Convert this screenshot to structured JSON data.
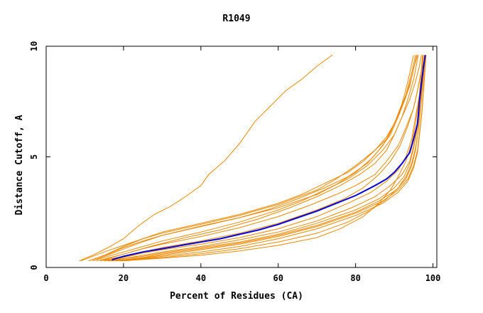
{
  "chart_data": {
    "type": "line",
    "title": "R1049",
    "xlabel": "Percent of Residues (CA)",
    "ylabel": "Distance Cutoff, A",
    "xlim": [
      0,
      101
    ],
    "ylim": [
      0,
      10
    ],
    "x_ticks": [
      0,
      20,
      40,
      60,
      80,
      100
    ],
    "y_ticks": [
      0,
      5,
      10
    ],
    "x_tick_labels": [
      "0",
      "20",
      "40",
      "60",
      "80",
      "100"
    ],
    "y_tick_labels": [
      "0",
      "5",
      "10"
    ],
    "grid": false,
    "legend": "none",
    "colors": {
      "models": "#ee8800",
      "highlight": "#0000dd"
    },
    "highlight": {
      "x": [
        17,
        20,
        25,
        30,
        35,
        40,
        45,
        50,
        55,
        60,
        65,
        70,
        75,
        80,
        85,
        88,
        90,
        92,
        94,
        95,
        96,
        96.5,
        97,
        97.5,
        98
      ],
      "y": [
        0.35,
        0.5,
        0.7,
        0.85,
        1.0,
        1.15,
        1.3,
        1.5,
        1.7,
        1.95,
        2.25,
        2.55,
        2.9,
        3.25,
        3.7,
        4.0,
        4.3,
        4.7,
        5.2,
        5.8,
        6.5,
        7.5,
        8.3,
        9.0,
        9.6
      ]
    },
    "series": [
      {
        "x": [
          8.5,
          12,
          16,
          20,
          24,
          28,
          32,
          36,
          40,
          42,
          46,
          50,
          54,
          58,
          62,
          66,
          70,
          74
        ],
        "y": [
          0.3,
          0.55,
          0.9,
          1.3,
          1.9,
          2.4,
          2.75,
          3.2,
          3.7,
          4.2,
          4.8,
          5.6,
          6.6,
          7.3,
          8.0,
          8.5,
          9.1,
          9.6
        ]
      },
      {
        "x": [
          9,
          15,
          20,
          25,
          30,
          40,
          50,
          60,
          70,
          75,
          80,
          85,
          88,
          90,
          92,
          94,
          95,
          96
        ],
        "y": [
          0.3,
          0.7,
          1.0,
          1.3,
          1.55,
          1.95,
          2.35,
          2.85,
          3.5,
          4.0,
          4.6,
          5.3,
          5.9,
          6.5,
          7.3,
          8.2,
          9.0,
          9.6
        ]
      },
      {
        "x": [
          11,
          16,
          20,
          25,
          30,
          40,
          50,
          60,
          70,
          75,
          80,
          84,
          87,
          89,
          91,
          93,
          94.5,
          95.5
        ],
        "y": [
          0.3,
          0.6,
          0.9,
          1.2,
          1.45,
          1.85,
          2.25,
          2.7,
          3.3,
          3.75,
          4.3,
          4.9,
          5.5,
          6.1,
          6.9,
          7.8,
          8.8,
          9.6
        ]
      },
      {
        "x": [
          12,
          18,
          25,
          30,
          40,
          50,
          60,
          66,
          72,
          78,
          83,
          87,
          90,
          92,
          94,
          95.5,
          96.5,
          97
        ],
        "y": [
          0.3,
          0.6,
          0.95,
          1.2,
          1.6,
          2.05,
          2.6,
          3.0,
          3.5,
          4.0,
          4.6,
          5.3,
          6.0,
          6.8,
          7.6,
          8.4,
          9.1,
          9.6
        ]
      },
      {
        "x": [
          13,
          20,
          25,
          30,
          40,
          50,
          60,
          68,
          75,
          80,
          85,
          88,
          91,
          93,
          95,
          96,
          97,
          97.5
        ],
        "y": [
          0.3,
          0.6,
          0.85,
          1.05,
          1.4,
          1.8,
          2.3,
          2.8,
          3.3,
          3.7,
          4.2,
          4.8,
          5.5,
          6.3,
          7.2,
          8.0,
          8.9,
          9.6
        ]
      },
      {
        "x": [
          14,
          20,
          25,
          30,
          40,
          50,
          60,
          70,
          77,
          82,
          86,
          89,
          91.5,
          93.5,
          95,
          96,
          97,
          97.5
        ],
        "y": [
          0.3,
          0.5,
          0.7,
          0.9,
          1.2,
          1.55,
          2.0,
          2.6,
          3.1,
          3.6,
          4.2,
          4.8,
          5.5,
          6.4,
          7.2,
          8.0,
          8.9,
          9.6
        ]
      },
      {
        "x": [
          15,
          20,
          25,
          30,
          40,
          50,
          60,
          70,
          78,
          84,
          88,
          91,
          93,
          94.5,
          95.5,
          96.5,
          97,
          97.5
        ],
        "y": [
          0.3,
          0.45,
          0.65,
          0.8,
          1.05,
          1.35,
          1.75,
          2.3,
          2.9,
          3.4,
          3.9,
          4.4,
          5.0,
          5.8,
          6.8,
          7.8,
          8.8,
          9.6
        ]
      },
      {
        "x": [
          15,
          20,
          25,
          30,
          40,
          50,
          60,
          70,
          79,
          85,
          89,
          92,
          94,
          95,
          96,
          96.8,
          97.3,
          97.8
        ],
        "y": [
          0.3,
          0.4,
          0.55,
          0.7,
          0.95,
          1.25,
          1.6,
          2.1,
          2.7,
          3.2,
          3.7,
          4.2,
          4.8,
          5.5,
          6.4,
          7.4,
          8.5,
          9.6
        ]
      },
      {
        "x": [
          16,
          20,
          25,
          30,
          40,
          50,
          60,
          70,
          80,
          86,
          90,
          92.5,
          94,
          95,
          96,
          96.8,
          97.4,
          98
        ],
        "y": [
          0.3,
          0.4,
          0.5,
          0.65,
          0.9,
          1.15,
          1.5,
          2.0,
          2.6,
          3.1,
          3.6,
          4.1,
          4.7,
          5.4,
          6.3,
          7.3,
          8.4,
          9.6
        ]
      },
      {
        "x": [
          16,
          20,
          25,
          30,
          40,
          50,
          60,
          70,
          80,
          86,
          90.5,
          93,
          94.5,
          95.5,
          96.2,
          96.8,
          97.4,
          98
        ],
        "y": [
          0.3,
          0.35,
          0.45,
          0.6,
          0.85,
          1.1,
          1.45,
          1.9,
          2.5,
          3.0,
          3.5,
          4.0,
          4.6,
          5.3,
          6.2,
          7.2,
          8.3,
          9.6
        ]
      },
      {
        "x": [
          17,
          20,
          25,
          30,
          40,
          50,
          60,
          70,
          80,
          87,
          91,
          93.5,
          95,
          96,
          96.6,
          97.2,
          97.7,
          98.2
        ],
        "y": [
          0.3,
          0.35,
          0.42,
          0.55,
          0.8,
          1.05,
          1.4,
          1.85,
          2.45,
          3.0,
          3.5,
          4.0,
          4.6,
          5.3,
          6.2,
          7.2,
          8.4,
          9.6
        ]
      },
      {
        "x": [
          18,
          25,
          30,
          40,
          50,
          60,
          70,
          80,
          87,
          91,
          93.5,
          95,
          96,
          96.6,
          97.2,
          97.7,
          98.2
        ],
        "y": [
          0.3,
          0.4,
          0.5,
          0.7,
          0.95,
          1.3,
          1.75,
          2.35,
          2.9,
          3.4,
          3.9,
          4.5,
          5.2,
          6.1,
          7.1,
          8.3,
          9.6
        ]
      },
      {
        "x": [
          19,
          25,
          30,
          40,
          50,
          60,
          70,
          78,
          84,
          88,
          91,
          93,
          94.5,
          95.5,
          96.3,
          96.9,
          97.5
        ],
        "y": [
          0.3,
          0.38,
          0.45,
          0.62,
          0.85,
          1.15,
          1.55,
          2.05,
          2.6,
          3.1,
          3.6,
          4.1,
          4.7,
          5.4,
          6.3,
          7.5,
          9.6
        ]
      },
      {
        "x": [
          20,
          25,
          30,
          40,
          50,
          60,
          70,
          76,
          82,
          86,
          89,
          91,
          93,
          94.5,
          95.5,
          96.5,
          97.3
        ],
        "y": [
          0.3,
          0.36,
          0.42,
          0.55,
          0.75,
          1.0,
          1.35,
          1.75,
          2.3,
          2.9,
          3.5,
          4.1,
          4.8,
          5.6,
          6.5,
          7.8,
          9.6
        ]
      },
      {
        "x": [
          11,
          15,
          20,
          25,
          30,
          35,
          40,
          50,
          60,
          66,
          72,
          78,
          82,
          85,
          88,
          90,
          92,
          93.5,
          95
        ],
        "y": [
          0.3,
          0.55,
          0.95,
          1.3,
          1.6,
          1.8,
          2.0,
          2.4,
          2.9,
          3.3,
          3.8,
          4.3,
          4.8,
          5.3,
          5.8,
          6.5,
          7.4,
          8.4,
          9.6
        ]
      },
      {
        "x": [
          12,
          18,
          24,
          30,
          36,
          42,
          50,
          58,
          65,
          72,
          78,
          83,
          86,
          89,
          91,
          93,
          94.5,
          95.8
        ],
        "y": [
          0.3,
          0.7,
          1.1,
          1.45,
          1.7,
          1.95,
          2.25,
          2.65,
          3.1,
          3.6,
          4.1,
          4.7,
          5.3,
          6.0,
          6.8,
          7.7,
          8.6,
          9.6
        ]
      },
      {
        "x": [
          14,
          20,
          28,
          36,
          45,
          55,
          63,
          70,
          76,
          81,
          85,
          88,
          90,
          92,
          93.5,
          95,
          96.2
        ],
        "y": [
          0.3,
          0.6,
          1.0,
          1.35,
          1.7,
          2.2,
          2.7,
          3.2,
          3.7,
          4.2,
          4.7,
          5.3,
          6.0,
          6.8,
          7.6,
          8.5,
          9.6
        ]
      }
    ]
  }
}
